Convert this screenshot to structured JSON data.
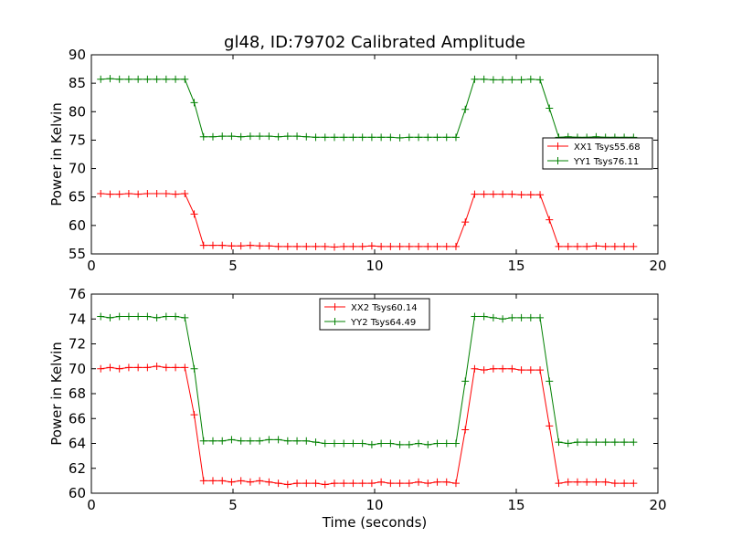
{
  "chart_data": [
    {
      "type": "line",
      "title": "gl48, ID:79702 Calibrated Amplitude",
      "xlabel": "",
      "ylabel": "Power in Kelvin",
      "xlim": [
        0,
        20
      ],
      "ylim": [
        55,
        90
      ],
      "xticks": [
        0,
        5,
        10,
        15,
        20
      ],
      "yticks": [
        55,
        60,
        65,
        70,
        75,
        80,
        85,
        90
      ],
      "grid": false,
      "legend_position": "center-right",
      "x": [
        0.33,
        0.66,
        0.99,
        1.32,
        1.65,
        1.98,
        2.31,
        2.64,
        2.97,
        3.3,
        3.63,
        3.96,
        4.29,
        4.62,
        4.95,
        5.28,
        5.61,
        5.94,
        6.27,
        6.6,
        6.93,
        7.26,
        7.59,
        7.92,
        8.25,
        8.58,
        8.91,
        9.24,
        9.57,
        9.9,
        10.23,
        10.56,
        10.89,
        11.22,
        11.55,
        11.88,
        12.21,
        12.54,
        12.87,
        13.2,
        13.53,
        13.86,
        14.19,
        14.52,
        14.85,
        15.18,
        15.51,
        15.84,
        16.17,
        16.5,
        16.83,
        17.16,
        17.49,
        17.82,
        18.15,
        18.48,
        18.81,
        19.14
      ],
      "series": [
        {
          "name": "XX1 Tsys55.68",
          "color": "#ff0000",
          "values": [
            65.6,
            65.5,
            65.5,
            65.6,
            65.5,
            65.6,
            65.6,
            65.6,
            65.5,
            65.6,
            62.0,
            56.5,
            56.5,
            56.5,
            56.4,
            56.4,
            56.5,
            56.4,
            56.4,
            56.3,
            56.3,
            56.3,
            56.3,
            56.3,
            56.3,
            56.2,
            56.3,
            56.3,
            56.3,
            56.4,
            56.3,
            56.3,
            56.3,
            56.3,
            56.3,
            56.3,
            56.3,
            56.3,
            56.3,
            60.6,
            65.5,
            65.5,
            65.5,
            65.5,
            65.5,
            65.4,
            65.4,
            65.4,
            61.0,
            56.3,
            56.3,
            56.3,
            56.3,
            56.4,
            56.3,
            56.3,
            56.3,
            56.3
          ]
        },
        {
          "name": "YY1 Tsys76.11",
          "color": "#008000",
          "values": [
            85.7,
            85.8,
            85.7,
            85.7,
            85.7,
            85.7,
            85.7,
            85.7,
            85.7,
            85.7,
            81.6,
            75.6,
            75.6,
            75.7,
            75.7,
            75.6,
            75.7,
            75.7,
            75.7,
            75.6,
            75.7,
            75.7,
            75.6,
            75.5,
            75.5,
            75.5,
            75.5,
            75.5,
            75.5,
            75.5,
            75.5,
            75.5,
            75.4,
            75.5,
            75.5,
            75.5,
            75.5,
            75.5,
            75.5,
            80.4,
            85.7,
            85.7,
            85.6,
            85.6,
            85.6,
            85.6,
            85.7,
            85.6,
            80.6,
            75.5,
            75.6,
            75.5,
            75.5,
            75.6,
            75.5,
            75.5,
            75.5,
            75.5
          ]
        }
      ]
    },
    {
      "type": "line",
      "title": "",
      "xlabel": "Time (seconds)",
      "ylabel": "Power in Kelvin",
      "xlim": [
        0,
        20
      ],
      "ylim": [
        60,
        76
      ],
      "xticks": [
        0,
        5,
        10,
        15,
        20
      ],
      "yticks": [
        60,
        62,
        64,
        66,
        68,
        70,
        72,
        74,
        76
      ],
      "grid": false,
      "legend_position": "top-center",
      "x": [
        0.33,
        0.66,
        0.99,
        1.32,
        1.65,
        1.98,
        2.31,
        2.64,
        2.97,
        3.3,
        3.63,
        3.96,
        4.29,
        4.62,
        4.95,
        5.28,
        5.61,
        5.94,
        6.27,
        6.6,
        6.93,
        7.26,
        7.59,
        7.92,
        8.25,
        8.58,
        8.91,
        9.24,
        9.57,
        9.9,
        10.23,
        10.56,
        10.89,
        11.22,
        11.55,
        11.88,
        12.21,
        12.54,
        12.87,
        13.2,
        13.53,
        13.86,
        14.19,
        14.52,
        14.85,
        15.18,
        15.51,
        15.84,
        16.17,
        16.5,
        16.83,
        17.16,
        17.49,
        17.82,
        18.15,
        18.48,
        18.81,
        19.14
      ],
      "series": [
        {
          "name": "XX2 Tsys60.14",
          "color": "#ff0000",
          "values": [
            70.0,
            70.1,
            70.0,
            70.1,
            70.1,
            70.1,
            70.2,
            70.1,
            70.1,
            70.1,
            66.3,
            61.0,
            61.0,
            61.0,
            60.9,
            61.0,
            60.9,
            61.0,
            60.9,
            60.8,
            60.7,
            60.8,
            60.8,
            60.8,
            60.7,
            60.8,
            60.8,
            60.8,
            60.8,
            60.8,
            60.9,
            60.8,
            60.8,
            60.8,
            60.9,
            60.8,
            60.9,
            60.9,
            60.8,
            65.1,
            70.0,
            69.9,
            70.0,
            70.0,
            70.0,
            69.9,
            69.9,
            69.9,
            65.4,
            60.8,
            60.9,
            60.9,
            60.9,
            60.9,
            60.9,
            60.8,
            60.8,
            60.8
          ]
        },
        {
          "name": "YY2 Tsys64.49",
          "color": "#008000",
          "values": [
            74.2,
            74.1,
            74.2,
            74.2,
            74.2,
            74.2,
            74.1,
            74.2,
            74.2,
            74.1,
            70.0,
            64.2,
            64.2,
            64.2,
            64.3,
            64.2,
            64.2,
            64.2,
            64.3,
            64.3,
            64.2,
            64.2,
            64.2,
            64.1,
            64.0,
            64.0,
            64.0,
            64.0,
            64.0,
            63.9,
            64.0,
            64.0,
            63.9,
            63.9,
            64.0,
            63.9,
            64.0,
            64.0,
            64.0,
            69.0,
            74.2,
            74.2,
            74.1,
            74.0,
            74.1,
            74.1,
            74.1,
            74.1,
            69.0,
            64.1,
            64.0,
            64.1,
            64.1,
            64.1,
            64.1,
            64.1,
            64.1,
            64.1
          ]
        }
      ]
    }
  ]
}
